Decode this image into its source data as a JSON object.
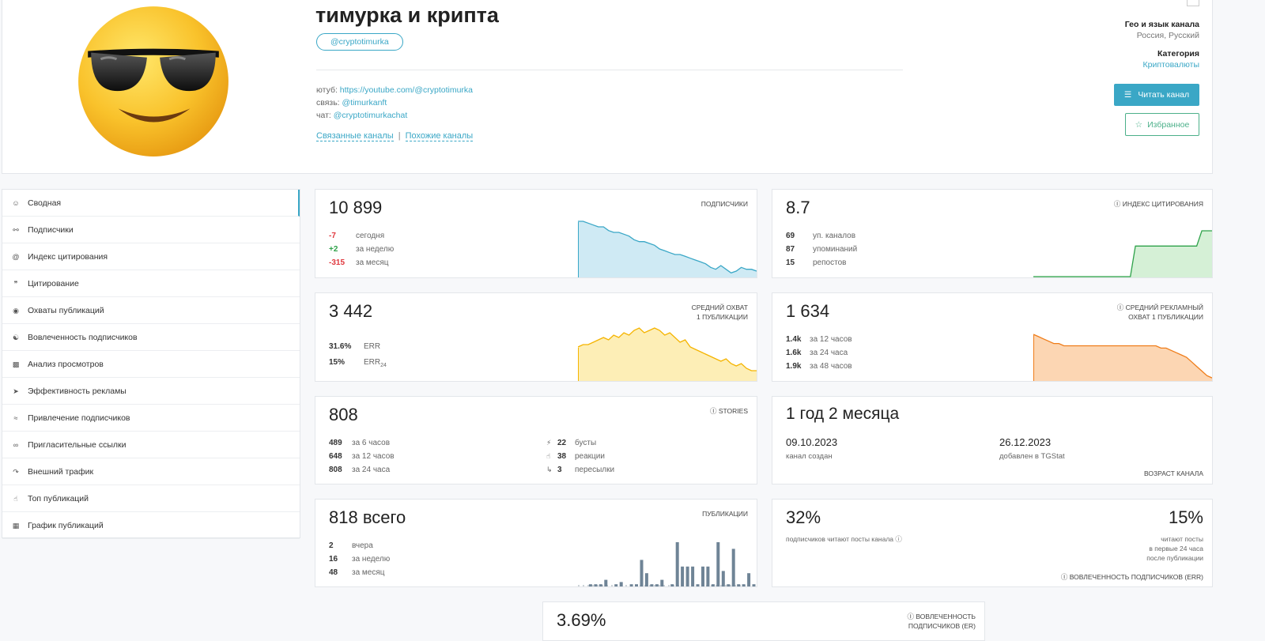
{
  "channel": {
    "title": "тимурка и крипта",
    "handle": "@cryptotimurka",
    "desc": [
      {
        "k": "ютуб: ",
        "v": "https://youtube.com/@cryptotimurka"
      },
      {
        "k": "связь: ",
        "v": "@timurkanft"
      },
      {
        "k": "чат: ",
        "v": "@cryptotimurkachat"
      }
    ],
    "links": {
      "related": "Связанные каналы",
      "sep": "|",
      "similar": "Похожие каналы"
    },
    "geo_label": "Гео и язык канала",
    "geo_value": "Россия, Русский",
    "cat_label": "Категория",
    "cat_value": "Криптовалюты",
    "read_btn": "Читать канал",
    "fav_btn": "Избранное"
  },
  "sidebar": {
    "items": [
      {
        "label": "Сводная",
        "icon": "home-icon"
      },
      {
        "label": "Подписчики",
        "icon": "users-icon"
      },
      {
        "label": "Индекс цитирования",
        "icon": "at-icon"
      },
      {
        "label": "Цитирование",
        "icon": "quote-icon"
      },
      {
        "label": "Охваты публикаций",
        "icon": "eye-icon"
      },
      {
        "label": "Вовлеченность подписчиков",
        "icon": "engage-icon"
      },
      {
        "label": "Анализ просмотров",
        "icon": "bar-chart-icon"
      },
      {
        "label": "Эффективность рекламы",
        "icon": "rocket-icon"
      },
      {
        "label": "Привлечение подписчиков",
        "icon": "trend-icon"
      },
      {
        "label": "Пригласительные ссылки",
        "icon": "link-icon"
      },
      {
        "label": "Внешний трафик",
        "icon": "share-icon"
      },
      {
        "label": "Топ публикаций",
        "icon": "thumbs-up-icon"
      },
      {
        "label": "График публикаций",
        "icon": "calendar-icon"
      }
    ]
  },
  "cards": {
    "subs": {
      "value": "10 899",
      "label": "ПОДПИСЧИКИ",
      "rows": [
        {
          "n": "-7",
          "t": "сегодня",
          "c": "red"
        },
        {
          "n": "+2",
          "t": "за неделю",
          "c": "green"
        },
        {
          "n": "-315",
          "t": "за месяц",
          "c": "red"
        }
      ]
    },
    "cit": {
      "value": "8.7",
      "label": "ИНДЕКС ЦИТИРОВАНИЯ",
      "rows": [
        {
          "n": "69",
          "t": "уп. каналов"
        },
        {
          "n": "87",
          "t": "упоминаний"
        },
        {
          "n": "15",
          "t": "репостов"
        }
      ]
    },
    "reach": {
      "value": "3 442",
      "label1": "СРЕДНИЙ ОХВАТ",
      "label2": "1 ПУБЛИКАЦИИ",
      "rows": [
        {
          "n": "31.6%",
          "t": "ERR"
        },
        {
          "n": "15%",
          "t": "ERR",
          "sub": "24"
        }
      ]
    },
    "adreach": {
      "value": "1 634",
      "label1": "СРЕДНИЙ РЕКЛАМНЫЙ",
      "label2": "ОХВАТ 1 ПУБЛИКАЦИИ",
      "rows": [
        {
          "n": "1.4k",
          "t": "за 12 часов"
        },
        {
          "n": "1.6k",
          "t": "за 24 часа"
        },
        {
          "n": "1.9k",
          "t": "за 48 часов"
        }
      ]
    },
    "stories": {
      "value": "808",
      "label": "STORIES",
      "rows": [
        {
          "n": "489",
          "t": "за 6 часов"
        },
        {
          "n": "648",
          "t": "за 12 часов"
        },
        {
          "n": "808",
          "t": "за 24 часа"
        }
      ],
      "rows2": [
        {
          "n": "22",
          "t": "бусты",
          "icon": "boost-icon"
        },
        {
          "n": "38",
          "t": "реакции",
          "icon": "thumbs-up-icon"
        },
        {
          "n": "3",
          "t": "пересылки",
          "icon": "forward-icon"
        }
      ]
    },
    "age": {
      "value": "1 год 2 месяца",
      "created_date": "09.10.2023",
      "created_label": "канал создан",
      "added_date": "26.12.2023",
      "added_label": "добавлен в TGStat",
      "label": "ВОЗРАСТ КАНАЛА"
    },
    "posts": {
      "value": "818",
      "value_suffix": "всего",
      "label": "ПУБЛИКАЦИИ",
      "rows": [
        {
          "n": "2",
          "t": "вчера"
        },
        {
          "n": "16",
          "t": "за неделю"
        },
        {
          "n": "48",
          "t": "за месяц"
        }
      ]
    },
    "err": {
      "value_left": "32%",
      "text_left": "подписчиков читают посты канала",
      "value_right": "15%",
      "text_right": [
        "читают посты",
        "в первые 24 часа",
        "после публикации"
      ],
      "label": "ВОВЛЕЧЕННОСТЬ ПОДПИСЧИКОВ (ERR)"
    },
    "er": {
      "value": "3.69%",
      "label1": "ВОВЛЕЧЕННОСТЬ",
      "label2": "ПОДПИСЧИКОВ (ER)"
    }
  },
  "colors": {
    "accent": "#3aa7c6",
    "blue_fill": "#d7eef6",
    "green_line": "#2ea24a",
    "yellow_line": "#f5b400",
    "orange_line": "#ef7d1a",
    "bar": "#6f8496"
  },
  "chart_data": [
    {
      "type": "area",
      "name": "subs_sparkline",
      "values": [
        30,
        30,
        29,
        28,
        27,
        27,
        25,
        24,
        24,
        23,
        22,
        20,
        19,
        19,
        18,
        17,
        15,
        14,
        13,
        12,
        12,
        11,
        10,
        9,
        8,
        7,
        5,
        4,
        6,
        4,
        2,
        3,
        5,
        4,
        4,
        3
      ]
    },
    {
      "type": "area",
      "name": "citation_sparkline",
      "values": [
        0,
        0,
        0,
        0,
        0,
        0,
        0,
        0,
        0,
        0,
        0,
        0,
        0,
        0,
        0,
        0,
        0,
        0,
        0,
        0,
        4,
        4,
        4,
        4,
        4,
        4,
        4,
        4,
        4,
        4,
        4,
        4,
        4,
        6,
        6,
        6
      ]
    },
    {
      "type": "area",
      "name": "reach_sparkline",
      "values": [
        14,
        15,
        15,
        16,
        17,
        18,
        17,
        19,
        18,
        20,
        19,
        21,
        22,
        20,
        21,
        22,
        21,
        19,
        20,
        18,
        16,
        17,
        14,
        13,
        12,
        11,
        10,
        9,
        8,
        9,
        7,
        6,
        7,
        5,
        4,
        4
      ]
    },
    {
      "type": "area",
      "name": "adreach_sparkline",
      "values": [
        20,
        19,
        18,
        17,
        16,
        16,
        15,
        15,
        15,
        15,
        15,
        15,
        15,
        15,
        15,
        15,
        15,
        15,
        15,
        15,
        15,
        15,
        15,
        15,
        15,
        14,
        14,
        13,
        12,
        11,
        10,
        8,
        6,
        4,
        2,
        1
      ]
    },
    {
      "type": "bar",
      "name": "posts_bars",
      "values": [
        0,
        0,
        1,
        1,
        1,
        3,
        0,
        1,
        2,
        0,
        1,
        1,
        12,
        6,
        1,
        1,
        3,
        0,
        1,
        20,
        9,
        9,
        9,
        1,
        9,
        9,
        1,
        20,
        7,
        1,
        17,
        1,
        1,
        6,
        1
      ]
    }
  ]
}
